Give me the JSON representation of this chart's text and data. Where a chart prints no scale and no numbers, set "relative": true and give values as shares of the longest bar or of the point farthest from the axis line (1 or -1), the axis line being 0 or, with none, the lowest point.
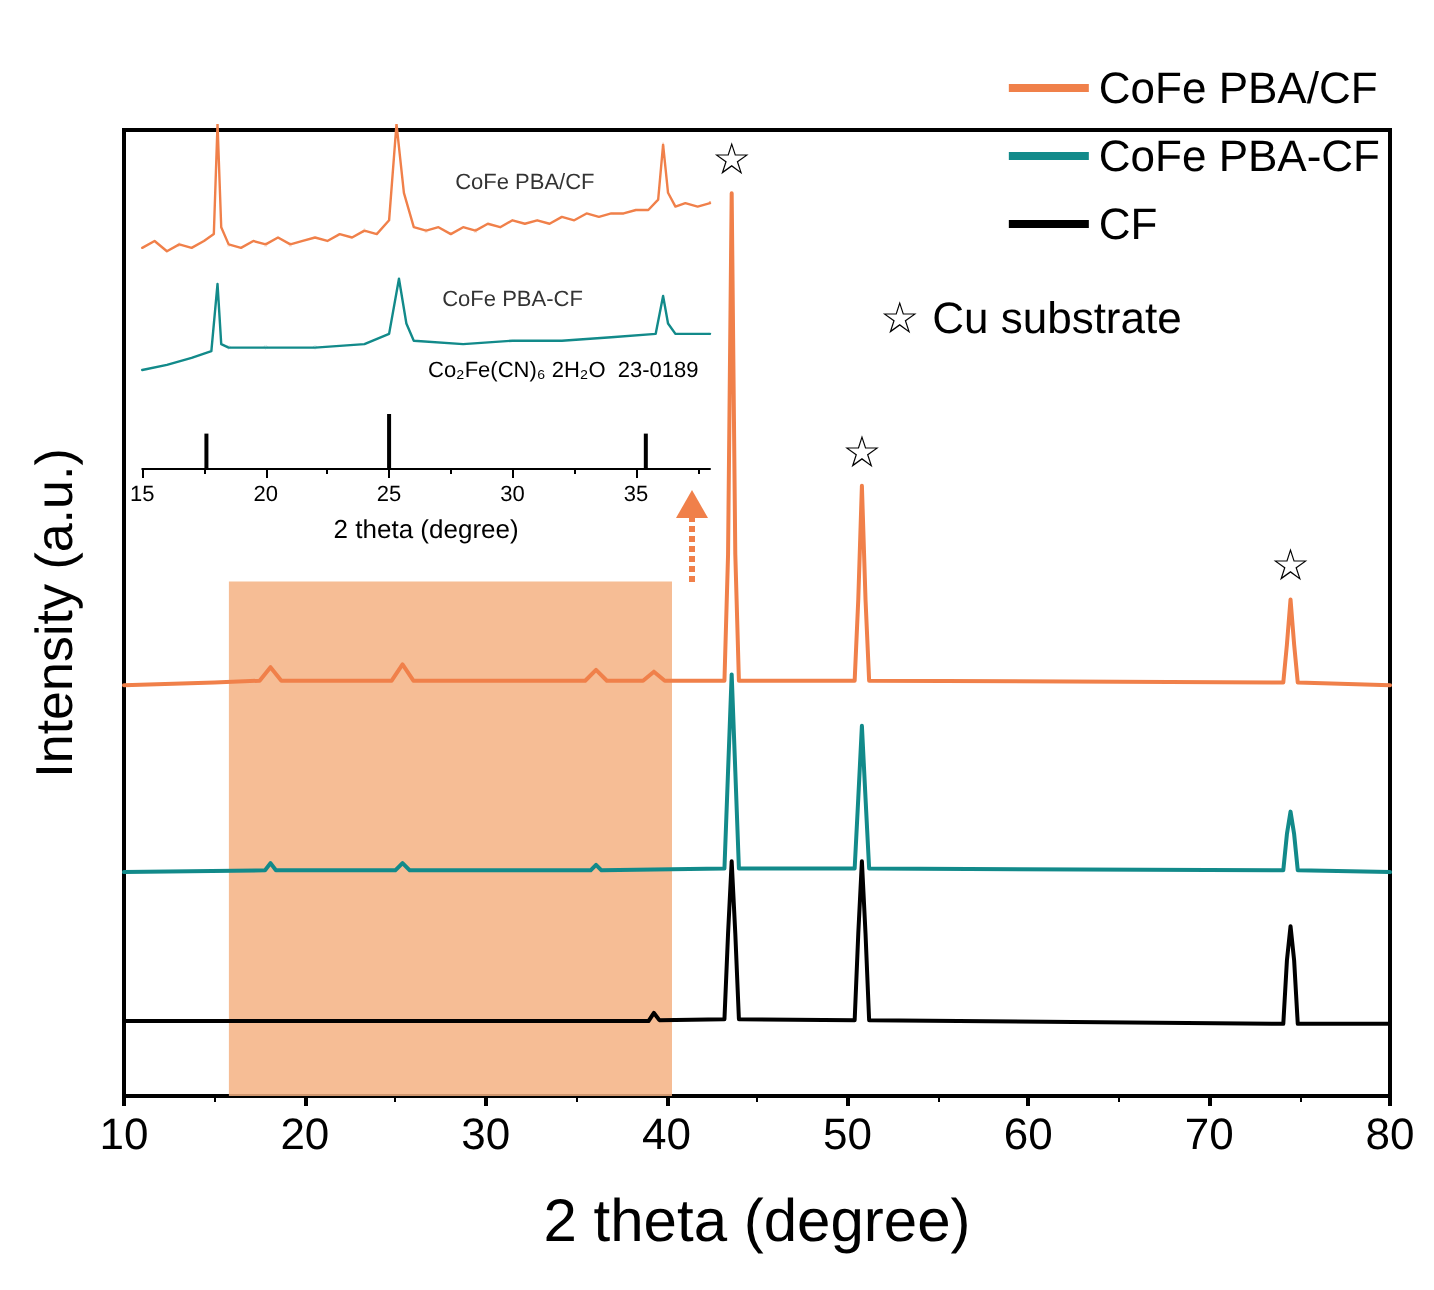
{
  "chart_data": [
    {
      "type": "line",
      "relative": true,
      "xlabel": "2 theta (degree)",
      "ylabel": "Intensity (a.u.)",
      "xlim": [
        10,
        80
      ],
      "xticks": [
        10,
        20,
        30,
        40,
        50,
        60,
        70,
        80
      ],
      "legend": "top right",
      "grid": false,
      "series": [
        {
          "name": "CoFe PBA/CF",
          "color": "#f0804a",
          "x": [
            10,
            15,
            17.5,
            18.1,
            18.7,
            24.8,
            25.4,
            26,
            35.5,
            36.1,
            36.7,
            38.7,
            39.3,
            39.9,
            43.2,
            43.4,
            43.6,
            43.8,
            44.0,
            50.4,
            50.6,
            50.8,
            51.0,
            51.2,
            74.1,
            74.3,
            74.5,
            74.7,
            74.9,
            80
          ],
          "values": [
            0.455,
            0.458,
            0.46,
            0.475,
            0.46,
            0.46,
            0.478,
            0.46,
            0.46,
            0.472,
            0.46,
            0.46,
            0.47,
            0.46,
            0.46,
            0.6,
            1,
            0.6,
            0.46,
            0.46,
            0.55,
            0.676,
            0.55,
            0.46,
            0.458,
            0.5,
            0.55,
            0.5,
            0.458,
            0.455
          ]
        },
        {
          "name": "CoFe PBA-CF",
          "color": "#128a8a",
          "x": [
            10,
            17.8,
            18.1,
            18.4,
            25,
            25.4,
            25.8,
            35.8,
            36.1,
            36.4,
            43.2,
            43.4,
            43.6,
            43.8,
            44.0,
            50.4,
            50.6,
            50.8,
            51.0,
            51.2,
            74.1,
            74.3,
            74.5,
            74.7,
            74.9,
            80
          ],
          "values": [
            0.248,
            0.25,
            0.258,
            0.25,
            0.25,
            0.258,
            0.25,
            0.25,
            0.256,
            0.25,
            0.252,
            0.36,
            0.467,
            0.36,
            0.252,
            0.252,
            0.33,
            0.41,
            0.33,
            0.252,
            0.25,
            0.29,
            0.315,
            0.29,
            0.25,
            0.248
          ]
        },
        {
          "name": "CF",
          "color": "#000000",
          "x": [
            10,
            39,
            39.3,
            39.6,
            43.2,
            43.4,
            43.6,
            43.8,
            44.0,
            50.4,
            50.6,
            50.8,
            51.0,
            51.2,
            74.1,
            74.3,
            74.5,
            74.7,
            74.9,
            80
          ],
          "values": [
            0.083,
            0.083,
            0.092,
            0.084,
            0.085,
            0.18,
            0.26,
            0.18,
            0.085,
            0.084,
            0.18,
            0.26,
            0.18,
            0.084,
            0.08,
            0.15,
            0.188,
            0.15,
            0.08,
            0.08
          ]
        }
      ],
      "bands": [
        {
          "axis": "x",
          "from": 15.8,
          "to": 40.3,
          "color": "#f4b183"
        }
      ],
      "annotations": [
        {
          "text": "☆",
          "x": 43.6,
          "y": 1
        },
        {
          "text": "☆",
          "x": 50.8,
          "y": 0.676
        },
        {
          "text": "☆",
          "x": 74.5,
          "y": 0.55
        },
        "☆ Cu substrate"
      ]
    },
    {
      "type": "line",
      "relative": true,
      "xlabel": "2 theta (degree)",
      "xlim": [
        15,
        38
      ],
      "xticks": [
        15,
        20,
        25,
        30,
        35
      ],
      "grid": false,
      "legend": false,
      "series": [
        {
          "name": "CoFe PBA/CF",
          "color": "#f0804a",
          "x": [
            15,
            15.5,
            16,
            16.5,
            17,
            17.5,
            17.9,
            18.05,
            18.2,
            18.5,
            19,
            19.5,
            20,
            20.5,
            21,
            21.5,
            22,
            22.5,
            23,
            23.5,
            24,
            24.5,
            25,
            25.3,
            25.6,
            26,
            26.5,
            27,
            27.5,
            28,
            28.5,
            29,
            29.5,
            30,
            30.5,
            31,
            31.5,
            32,
            32.5,
            33,
            33.5,
            34,
            34.5,
            35,
            35.5,
            35.9,
            36.1,
            36.3,
            36.6,
            37,
            37.5,
            38
          ],
          "values": [
            0.64,
            0.66,
            0.63,
            0.65,
            0.64,
            0.66,
            0.68,
            1,
            0.7,
            0.65,
            0.64,
            0.66,
            0.65,
            0.67,
            0.65,
            0.66,
            0.67,
            0.66,
            0.68,
            0.67,
            0.69,
            0.68,
            0.72,
            1,
            0.8,
            0.7,
            0.69,
            0.7,
            0.68,
            0.7,
            0.69,
            0.71,
            0.7,
            0.72,
            0.71,
            0.72,
            0.71,
            0.73,
            0.72,
            0.74,
            0.73,
            0.74,
            0.74,
            0.75,
            0.75,
            0.78,
            0.94,
            0.8,
            0.76,
            0.77,
            0.76,
            0.77
          ]
        },
        {
          "name": "CoFe PBA-CF",
          "color": "#128a8a",
          "x": [
            15,
            16,
            17,
            17.8,
            18.05,
            18.2,
            18.5,
            20,
            22,
            24,
            25,
            25.4,
            25.7,
            26,
            28,
            30,
            32,
            34,
            35.8,
            36.1,
            36.3,
            36.6,
            38
          ],
          "values": [
            0.285,
            0.3,
            0.32,
            0.34,
            0.535,
            0.36,
            0.35,
            0.35,
            0.35,
            0.36,
            0.39,
            0.55,
            0.42,
            0.37,
            0.36,
            0.37,
            0.37,
            0.38,
            0.39,
            0.5,
            0.42,
            0.39,
            0.39
          ]
        },
        {
          "type": "bar",
          "color": "#000000",
          "x": [
            17.6,
            25,
            35.4
          ],
          "values": [
            0.1,
            0.157,
            0.1
          ]
        }
      ],
      "annotations": [
        "Co₂Fe(CN)₆ 2H₂O  23-0189"
      ]
    }
  ]
}
